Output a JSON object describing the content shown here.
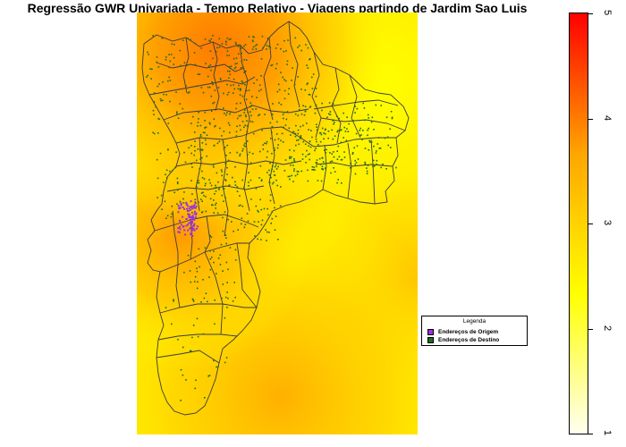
{
  "title": "Regressão GWR Univariada - Tempo Relativo - Viagens partindo de Jardim Sao Luis",
  "legend": {
    "title": "Legenda",
    "items": [
      {
        "label": "Endereços de Origem",
        "color": "#9b30e0"
      },
      {
        "label": "Endereços de Destino",
        "color": "#1e6b1e"
      }
    ]
  },
  "colorbar": {
    "min": 1,
    "max": 5,
    "ticks": [
      "1",
      "2",
      "3",
      "4",
      "5"
    ],
    "gradient": [
      "#fffff0",
      "#ffff00",
      "#ffa500",
      "#ff0000"
    ]
  },
  "colors": {
    "district_border": "#3a3a3a",
    "surface_low": "#ffff00",
    "surface_mid": "#ffa000",
    "surface_high": "#ff6a00"
  }
}
